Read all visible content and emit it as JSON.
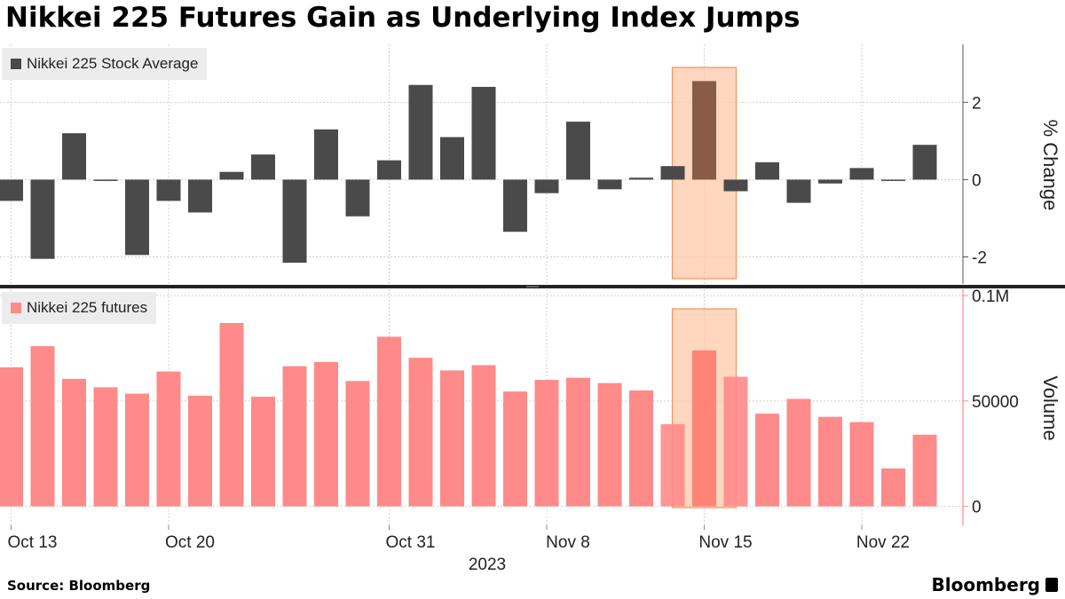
{
  "title": "Nikkei 225 Futures Gain as Underlying Index Jumps",
  "source": "Source: Bloomberg",
  "brand": "Bloomberg",
  "colors": {
    "top_bar": "#4a4a4a",
    "bottom_bar": "#ff8a8a",
    "highlight_fill": "#ffc8a8",
    "highlight_stroke": "#f0955a",
    "highlighted_bar": "#8a5c48",
    "highlighted_bar_bottom": "#ff7a6e"
  },
  "chart_data": [
    {
      "type": "bar",
      "legend": "Nikkei 225 Stock Average",
      "ylabel": "% Change",
      "yticks": [
        2,
        0,
        -2
      ],
      "ylim": [
        -2.7,
        3.5
      ],
      "highlight_index": 22,
      "values": [
        -0.55,
        -2.05,
        1.2,
        0.0,
        -1.95,
        -0.55,
        -0.85,
        0.2,
        0.65,
        -2.15,
        1.3,
        -0.95,
        0.5,
        2.45,
        1.1,
        2.4,
        -1.35,
        -0.35,
        1.5,
        -0.25,
        0.05,
        0.35,
        2.55,
        -0.3,
        0.45,
        -0.6,
        -0.1,
        0.3,
        0.0,
        0.9
      ]
    },
    {
      "type": "bar",
      "legend": "Nikkei 225 futures",
      "ylabel": "Volume",
      "yticks": [
        "0.1M",
        "50000",
        "0"
      ],
      "ytick_values": [
        100000,
        50000,
        0
      ],
      "ylim": [
        -9000,
        103000
      ],
      "highlight_index": 22,
      "values": [
        66000,
        76000,
        60500,
        56500,
        53500,
        64000,
        52500,
        87000,
        52000,
        66500,
        68500,
        59500,
        80500,
        70500,
        64500,
        67000,
        54500,
        60000,
        61000,
        58500,
        55000,
        39000,
        74000,
        61500,
        44000,
        51000,
        42500,
        40000,
        18000,
        34000
      ]
    }
  ],
  "x_axis": {
    "tick_labels": [
      {
        "label": "Oct 13",
        "index": 0
      },
      {
        "label": "Oct 20",
        "index": 5
      },
      {
        "label": "Oct 31",
        "index": 12
      },
      {
        "label": "Nov 8",
        "index": 17
      },
      {
        "label": "Nov 15",
        "index": 22
      },
      {
        "label": "Nov 22",
        "index": 27
      }
    ],
    "year_label": "2023"
  }
}
